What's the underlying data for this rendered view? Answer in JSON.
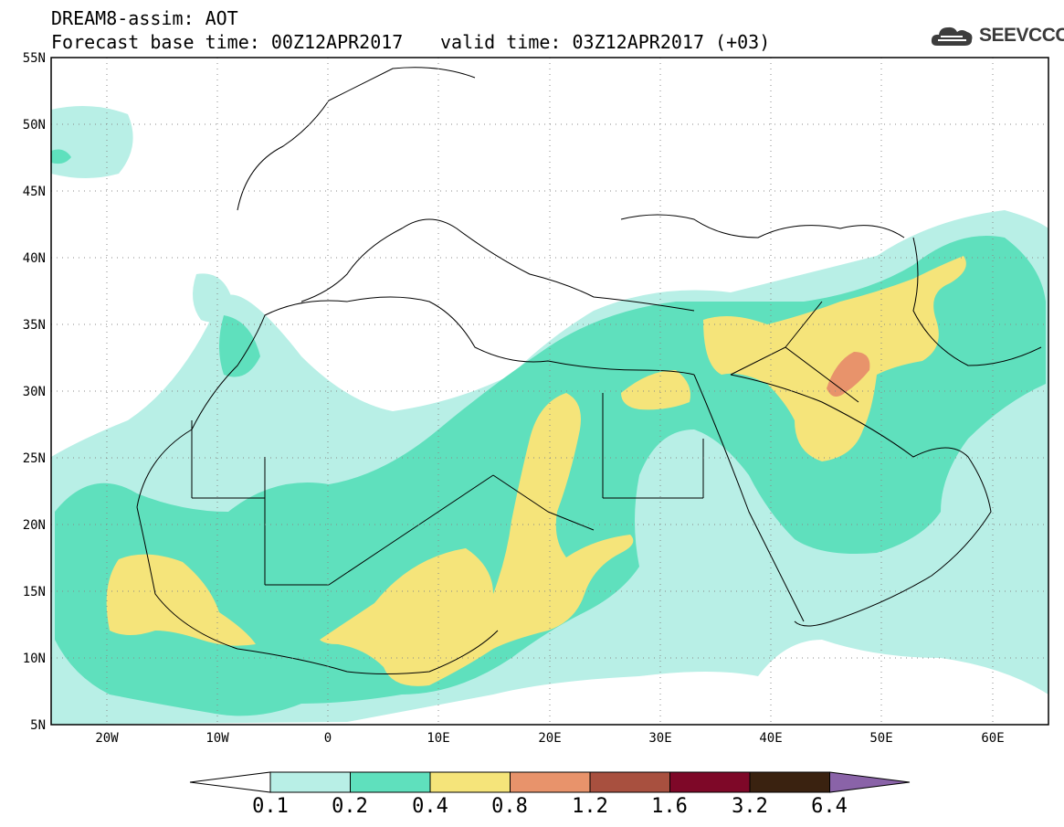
{
  "header": {
    "title_line1": "DREAM8-assim: AOT",
    "title_line2": "Forecast base time: 00Z12APR2017",
    "valid_time": "valid time: 03Z12APR2017 (+03)",
    "logo_text": "SEEVCCC",
    "logo_icon": "cloud-icon"
  },
  "map": {
    "extent": {
      "lon": [
        -25,
        65
      ],
      "lat": [
        5,
        55
      ]
    },
    "lat_ticks": [
      "55N",
      "50N",
      "45N",
      "40N",
      "35N",
      "30N",
      "25N",
      "20N",
      "15N",
      "10N",
      "5N"
    ],
    "lon_ticks": [
      "20W",
      "10W",
      "0",
      "10E",
      "20E",
      "30E",
      "40E",
      "50E",
      "60E"
    ],
    "gridlines": "dotted"
  },
  "colorbar": {
    "levels": [
      "0.1",
      "0.2",
      "0.4",
      "0.8",
      "1.2",
      "1.6",
      "3.2",
      "6.4"
    ],
    "colors": [
      "#b8efe6",
      "#5fe0bd",
      "#f5e47a",
      "#e8936b",
      "#a8503f",
      "#7e0828",
      "#3a2210",
      "#8a63a8"
    ],
    "under_color": "#ffffff"
  }
}
